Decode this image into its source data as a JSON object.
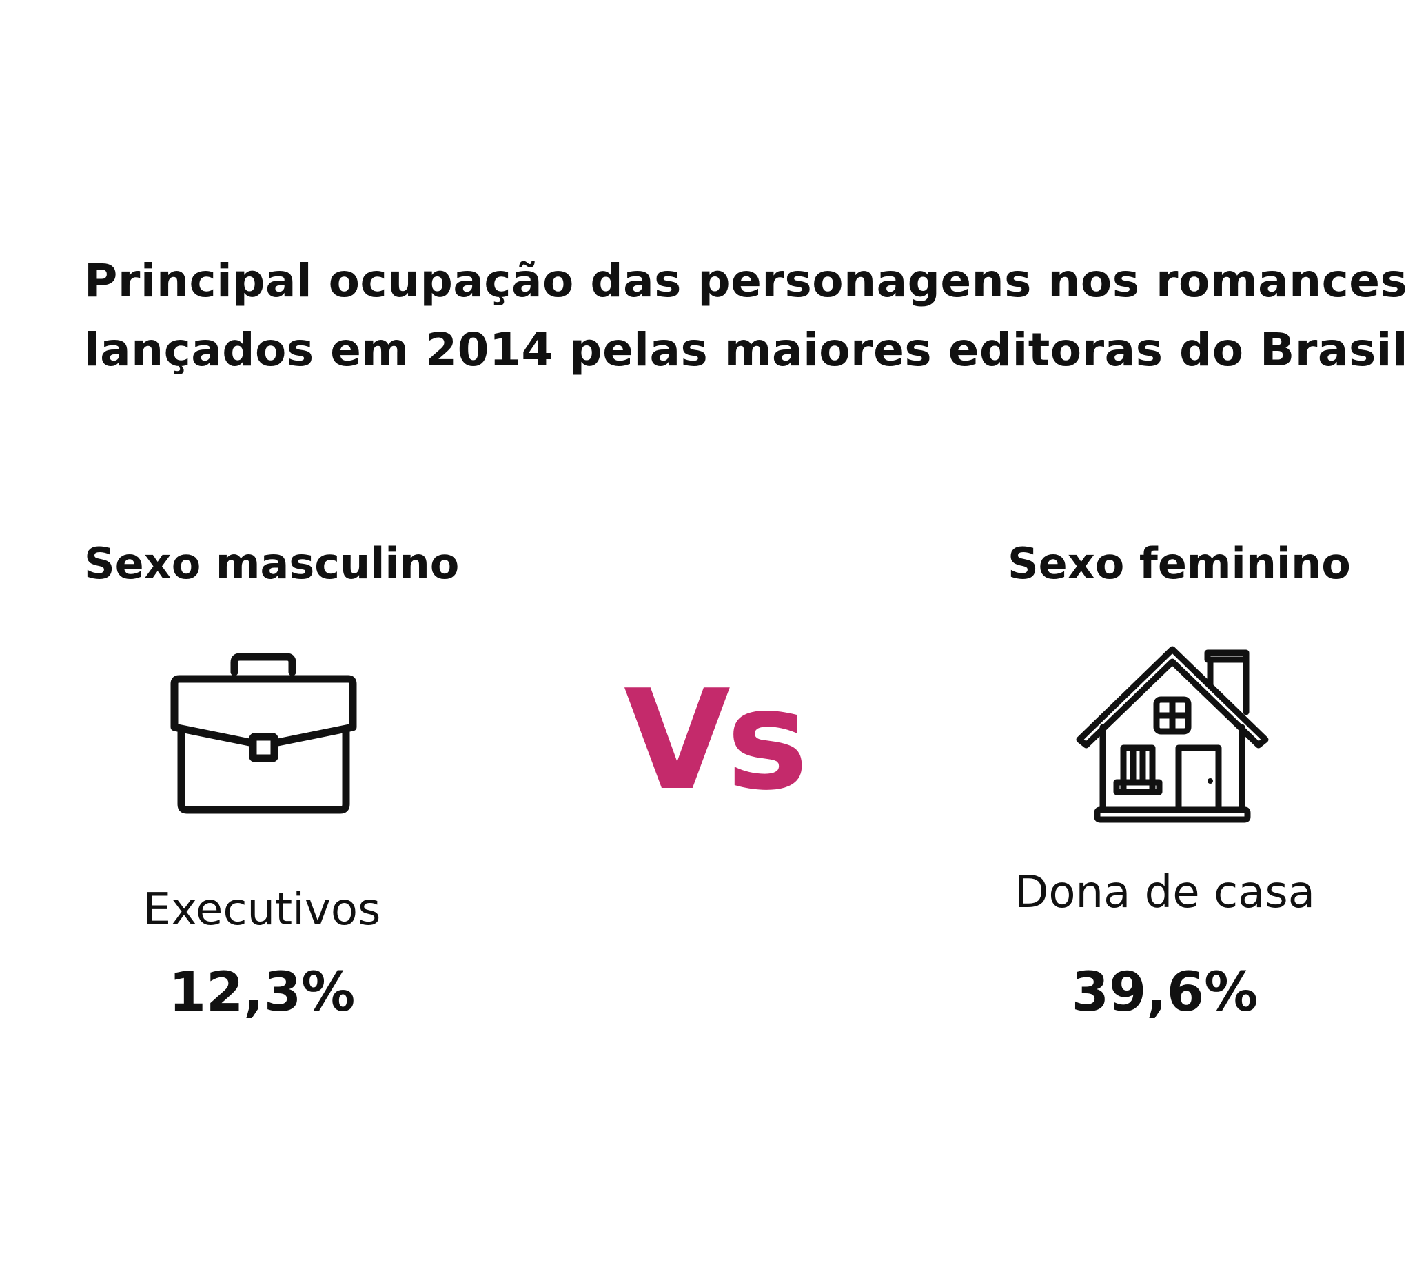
{
  "title": {
    "line1": "Principal ocupação das personagens nos romances",
    "line2": "lançados em 2014 pelas maiores editoras do Brasil"
  },
  "male": {
    "heading": "Sexo masculino",
    "icon": "briefcase-icon",
    "occupation": "Executivos",
    "percent": "12,3%"
  },
  "versus": {
    "label": "Vs",
    "color": "#c42a6b"
  },
  "female": {
    "heading": "Sexo feminino",
    "icon": "house-icon",
    "occupation": "Dona de casa",
    "percent": "39,6%"
  },
  "colors": {
    "text": "#111111",
    "accent": "#c42a6b",
    "background": "#ffffff"
  }
}
